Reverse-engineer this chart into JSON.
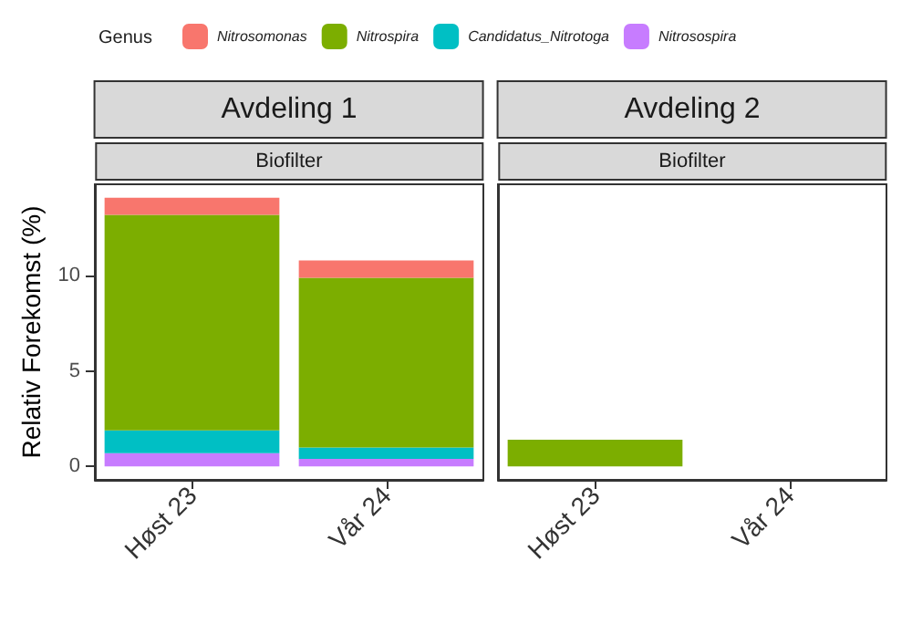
{
  "chart_data": [
    {
      "type": "bar",
      "title": "Avdeling 1",
      "subtitle": "Biofilter",
      "ylabel": "Relativ Forekomst (%)",
      "legend_title": "Genus",
      "legend": "top",
      "stacked": true,
      "grid": false,
      "categories": [
        "Høst 23",
        "Vår 24"
      ],
      "ylim": [
        -0.7,
        14.8
      ],
      "yticks": [
        0,
        5,
        10
      ],
      "series": [
        {
          "name": "Nitrosospira",
          "color": "#c77cff",
          "values": [
            0.7,
            0.4
          ]
        },
        {
          "name": "Candidatus_Nitrotoga",
          "color": "#00bfc4",
          "values": [
            1.2,
            0.6
          ]
        },
        {
          "name": "Nitrospira",
          "color": "#7cae00",
          "values": [
            11.3,
            8.9
          ]
        },
        {
          "name": "Nitrosomonas",
          "color": "#f8766d",
          "values": [
            0.9,
            0.9
          ]
        }
      ]
    },
    {
      "type": "bar",
      "title": "Avdeling 2",
      "subtitle": "Biofilter",
      "stacked": true,
      "grid": false,
      "tick_labels": "x",
      "categories": [
        "Høst 23",
        "Vår 24"
      ],
      "ylim": [
        -0.7,
        14.8
      ],
      "yticks": [
        0,
        5,
        10
      ],
      "series": [
        {
          "color": "#7cae00",
          "values": [
            1.4,
            null
          ]
        }
      ]
    }
  ]
}
